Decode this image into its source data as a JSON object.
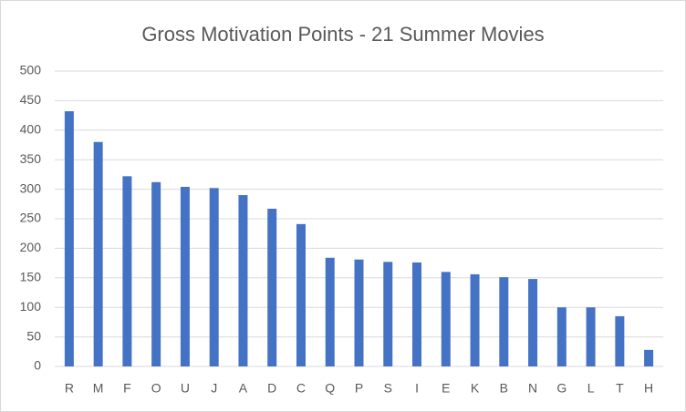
{
  "chart_data": {
    "type": "bar",
    "title": "Gross Motivation Points - 21 Summer Movies",
    "categories": [
      "R",
      "M",
      "F",
      "O",
      "U",
      "J",
      "A",
      "D",
      "C",
      "Q",
      "P",
      "S",
      "I",
      "E",
      "K",
      "B",
      "N",
      "G",
      "L",
      "T",
      "H"
    ],
    "values": [
      432,
      380,
      322,
      312,
      304,
      302,
      290,
      267,
      241,
      184,
      181,
      177,
      176,
      160,
      156,
      151,
      148,
      100,
      100,
      85,
      28
    ],
    "color": "#4472c4",
    "ylim": [
      0,
      500
    ],
    "yticks": [
      0,
      50,
      100,
      150,
      200,
      250,
      300,
      350,
      400,
      450,
      500
    ],
    "grid": true
  }
}
